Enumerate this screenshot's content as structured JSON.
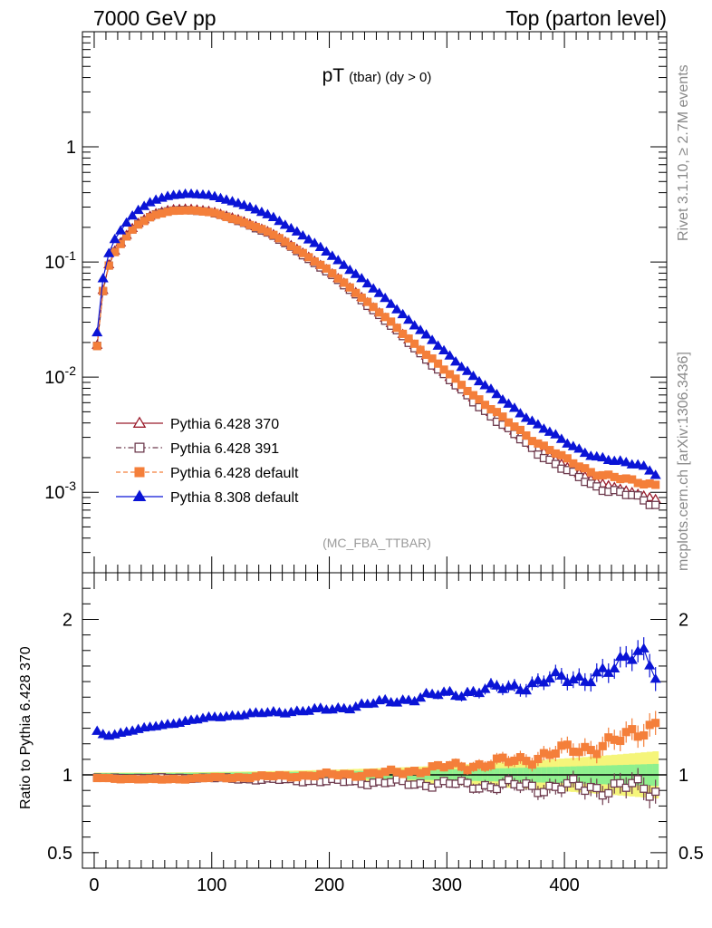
{
  "header": {
    "left": "7000 GeV pp",
    "right": "Top (parton level)"
  },
  "side_labels": {
    "rivet": "Rivet 3.1.10, ≥ 2.7M events",
    "mcplots": "mcplots.cern.ch [arXiv:1306.3436]"
  },
  "plot": {
    "title_main": "pT",
    "title_sub": "(tbar) (dy > 0)",
    "watermark": "(MC_FBA_TTBAR)",
    "ratio_ylabel": "Ratio to Pythia 6.428 370"
  },
  "colors": {
    "p370": "#9b1c2c",
    "p391": "#6e3b4e",
    "p6def": "#f47f3a",
    "p8def": "#0a14d6",
    "band_inner": "#8ef08e",
    "band_outer": "#f5f57a"
  },
  "legend": [
    {
      "key": "p370",
      "label": "Pythia 6.428 370",
      "marker": "open-triangle",
      "line": "solid"
    },
    {
      "key": "p391",
      "label": "Pythia 6.428 391",
      "marker": "open-square",
      "line": "dashdot"
    },
    {
      "key": "p6def",
      "label": "Pythia 6.428 default",
      "marker": "filled-square",
      "line": "dashed"
    },
    {
      "key": "p8def",
      "label": "Pythia 8.308 default",
      "marker": "filled-triangle",
      "line": "solid"
    }
  ],
  "chart_data": {
    "type": "scatter",
    "x_axis": {
      "range": [
        -10,
        487
      ],
      "ticks": [
        0,
        100,
        200,
        300,
        400
      ]
    },
    "main_y_axis": {
      "scale": "log",
      "range": [
        0.0002,
        10
      ],
      "tick_labels": [
        "10^-3",
        "10^-2",
        "10^-1",
        "1"
      ]
    },
    "ratio_y_axis": {
      "range": [
        0.4,
        2.3
      ],
      "tick_labels": [
        "0.5",
        "1",
        "2"
      ]
    },
    "reference_series": "Pythia 6.428 370",
    "x_bin_centers_range": [
      2.5,
      477.5
    ],
    "x_bin_width": 5,
    "reference_anchors": {
      "x": [
        2.5,
        7.5,
        12.5,
        17.5,
        25,
        35,
        50,
        65,
        80,
        100,
        125,
        150,
        175,
        200,
        225,
        250,
        275,
        300,
        325,
        350,
        375,
        400,
        425,
        450,
        465,
        477.5
      ],
      "value": [
        0.019,
        0.057,
        0.095,
        0.125,
        0.16,
        0.21,
        0.26,
        0.285,
        0.29,
        0.275,
        0.23,
        0.18,
        0.125,
        0.083,
        0.052,
        0.031,
        0.018,
        0.0105,
        0.0063,
        0.0039,
        0.0025,
        0.0017,
        0.00125,
        0.00105,
        0.00095,
        0.00087
      ]
    },
    "series": [
      {
        "name": "Pythia 6.428 370",
        "ratio_anchors": {
          "x": [
            2.5,
            477.5
          ],
          "value": [
            1.0,
            1.0
          ]
        }
      },
      {
        "name": "Pythia 6.428 391",
        "ratio_anchors": {
          "x": [
            2.5,
            50,
            100,
            150,
            200,
            250,
            300,
            350,
            400,
            450,
            477.5
          ],
          "value": [
            0.98,
            0.98,
            0.98,
            0.97,
            0.96,
            0.95,
            0.94,
            0.93,
            0.92,
            0.92,
            0.91
          ]
        }
      },
      {
        "name": "Pythia 6.428 default",
        "ratio_anchors": {
          "x": [
            2.5,
            50,
            100,
            150,
            200,
            250,
            300,
            350,
            400,
            450,
            477.5
          ],
          "value": [
            0.98,
            0.97,
            0.98,
            0.99,
            1.0,
            1.01,
            1.05,
            1.08,
            1.15,
            1.22,
            1.35
          ]
        }
      },
      {
        "name": "Pythia 8.308 default",
        "ratio_anchors": {
          "x": [
            2.5,
            10,
            50,
            100,
            150,
            200,
            250,
            300,
            350,
            400,
            440,
            465,
            477.5
          ],
          "value": [
            1.28,
            1.25,
            1.31,
            1.37,
            1.4,
            1.42,
            1.47,
            1.52,
            1.56,
            1.62,
            1.65,
            1.85,
            1.65
          ]
        }
      }
    ],
    "mc_uncertainty_band": {
      "inner": "green",
      "outer": "yellow",
      "x_range": [
        2.5,
        477.5
      ]
    }
  }
}
